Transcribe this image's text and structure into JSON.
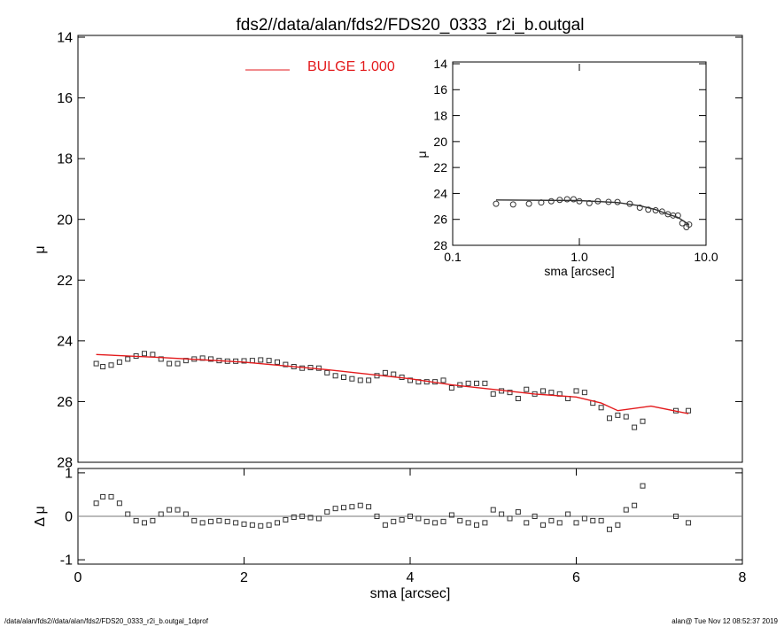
{
  "title": "fds2//data/alan/fds2/FDS20_0333_r2i_b.outgal",
  "footer_left": "/data/alan/fds2//data/alan/fds2/FDS20_0333_r2i_b.outgal_1dprof",
  "footer_right": "alan@  Tue Nov 12 08:52:37 2019",
  "chart_data": [
    {
      "type": "scatter",
      "ylabel": "μ",
      "ylim": [
        28,
        14
      ],
      "xlim": [
        0,
        8
      ],
      "yticks": [
        14,
        16,
        18,
        20,
        22,
        24,
        26,
        28
      ],
      "series": [
        {
          "marker": "square",
          "color": "#333333",
          "x": [
            0.22,
            0.3,
            0.4,
            0.5,
            0.6,
            0.7,
            0.8,
            0.9,
            1.0,
            1.1,
            1.2,
            1.3,
            1.4,
            1.5,
            1.6,
            1.7,
            1.8,
            1.9,
            2.0,
            2.1,
            2.2,
            2.3,
            2.4,
            2.5,
            2.6,
            2.7,
            2.8,
            2.9,
            3.0,
            3.1,
            3.2,
            3.3,
            3.4,
            3.5,
            3.6,
            3.7,
            3.8,
            3.9,
            4.0,
            4.1,
            4.2,
            4.3,
            4.4,
            4.5,
            4.6,
            4.7,
            4.8,
            4.9,
            5.0,
            5.1,
            5.2,
            5.3,
            5.4,
            5.5,
            5.6,
            5.7,
            5.8,
            5.9,
            6.0,
            6.1,
            6.2,
            6.3,
            6.4,
            6.5,
            6.6,
            6.7,
            6.8,
            7.2,
            7.35
          ],
          "values": [
            24.75,
            24.85,
            24.8,
            24.7,
            24.6,
            24.5,
            24.42,
            24.45,
            24.6,
            24.75,
            24.75,
            24.65,
            24.6,
            24.57,
            24.6,
            24.65,
            24.67,
            24.67,
            24.66,
            24.65,
            24.63,
            24.65,
            24.7,
            24.78,
            24.85,
            24.9,
            24.88,
            24.9,
            25.05,
            25.15,
            25.2,
            25.25,
            25.3,
            25.3,
            25.15,
            25.05,
            25.1,
            25.2,
            25.3,
            25.35,
            25.35,
            25.35,
            25.3,
            25.55,
            25.45,
            25.4,
            25.4,
            25.4,
            25.75,
            25.65,
            25.7,
            25.9,
            25.6,
            25.75,
            25.65,
            25.7,
            25.75,
            25.9,
            25.65,
            25.7,
            26.05,
            26.2,
            26.55,
            26.45,
            26.5,
            26.85,
            26.65,
            26.3,
            26.3
          ]
        },
        {
          "name": "BULGE  1.000",
          "marker": "line",
          "color": "#e31a1c",
          "x": [
            0.22,
            1,
            2,
            3,
            4,
            4.5,
            5,
            5.5,
            6,
            6.3,
            6.5,
            6.9,
            7.35
          ],
          "values": [
            24.45,
            24.55,
            24.7,
            24.95,
            25.25,
            25.45,
            25.6,
            25.75,
            25.85,
            26.05,
            26.3,
            26.15,
            26.4
          ]
        }
      ]
    },
    {
      "type": "scatter",
      "ylabel": "Δ μ",
      "xlabel": "sma [arcsec]",
      "ylim": [
        -1.1,
        1.1
      ],
      "xlim": [
        0,
        8
      ],
      "yticks": [
        -1,
        0,
        1
      ],
      "xticks": [
        0,
        2,
        4,
        6,
        8
      ],
      "zero_line": true,
      "series": [
        {
          "marker": "square",
          "color": "#333333",
          "x": [
            0.22,
            0.3,
            0.4,
            0.5,
            0.6,
            0.7,
            0.8,
            0.9,
            1.0,
            1.1,
            1.2,
            1.3,
            1.4,
            1.5,
            1.6,
            1.7,
            1.8,
            1.9,
            2.0,
            2.1,
            2.2,
            2.3,
            2.4,
            2.5,
            2.6,
            2.7,
            2.8,
            2.9,
            3.0,
            3.1,
            3.2,
            3.3,
            3.4,
            3.5,
            3.6,
            3.7,
            3.8,
            3.9,
            4.0,
            4.1,
            4.2,
            4.3,
            4.4,
            4.5,
            4.6,
            4.7,
            4.8,
            4.9,
            5.0,
            5.1,
            5.2,
            5.3,
            5.4,
            5.5,
            5.6,
            5.7,
            5.8,
            5.9,
            6.0,
            6.1,
            6.2,
            6.3,
            6.4,
            6.5,
            6.6,
            6.7,
            6.8,
            7.2,
            7.35
          ],
          "values": [
            0.3,
            0.45,
            0.45,
            0.3,
            0.05,
            -0.1,
            -0.15,
            -0.1,
            0.05,
            0.15,
            0.15,
            0.05,
            -0.1,
            -0.15,
            -0.12,
            -0.1,
            -0.12,
            -0.15,
            -0.18,
            -0.2,
            -0.22,
            -0.2,
            -0.15,
            -0.08,
            -0.02,
            0.0,
            -0.03,
            -0.05,
            0.1,
            0.18,
            0.2,
            0.22,
            0.25,
            0.22,
            0.0,
            -0.2,
            -0.12,
            -0.08,
            0.0,
            -0.05,
            -0.12,
            -0.15,
            -0.12,
            0.03,
            -0.1,
            -0.15,
            -0.2,
            -0.15,
            0.15,
            0.05,
            -0.05,
            0.1,
            -0.15,
            0.0,
            -0.2,
            -0.1,
            -0.15,
            0.05,
            -0.15,
            -0.05,
            -0.1,
            -0.1,
            -0.3,
            -0.2,
            0.15,
            0.25,
            0.7,
            0.0,
            -0.15
          ]
        }
      ]
    },
    {
      "type": "scatter",
      "ylabel": "μ",
      "xlabel": "sma [arcsec]",
      "ylim": [
        28,
        14
      ],
      "xlim": [
        0.1,
        10
      ],
      "log_x": true,
      "yticks": [
        14,
        16,
        18,
        20,
        22,
        24,
        26,
        28
      ],
      "xticks": [
        0.1,
        {
          "value": 1,
          "label": "1.0"
        },
        {
          "value": 10,
          "label": "10.0"
        }
      ],
      "series": [
        {
          "marker": "circle",
          "color": "#333333",
          "x": [
            0.22,
            0.3,
            0.4,
            0.5,
            0.6,
            0.7,
            0.8,
            0.9,
            1.0,
            1.2,
            1.4,
            1.7,
            2,
            2.5,
            3,
            3.5,
            4,
            4.5,
            5,
            5.5,
            6,
            6.5,
            7,
            7.35
          ],
          "values": [
            24.8,
            24.85,
            24.8,
            24.7,
            24.6,
            24.5,
            24.45,
            24.45,
            24.6,
            24.75,
            24.6,
            24.65,
            24.66,
            24.8,
            25.1,
            25.25,
            25.3,
            25.4,
            25.6,
            25.7,
            25.7,
            26.3,
            26.6,
            26.4
          ]
        },
        {
          "marker": "line",
          "color": "#333333",
          "x": [
            0.22,
            1,
            2,
            3,
            4,
            5,
            6,
            7.35
          ],
          "values": [
            24.5,
            24.55,
            24.7,
            24.95,
            25.25,
            25.6,
            25.85,
            26.4
          ]
        }
      ]
    }
  ]
}
